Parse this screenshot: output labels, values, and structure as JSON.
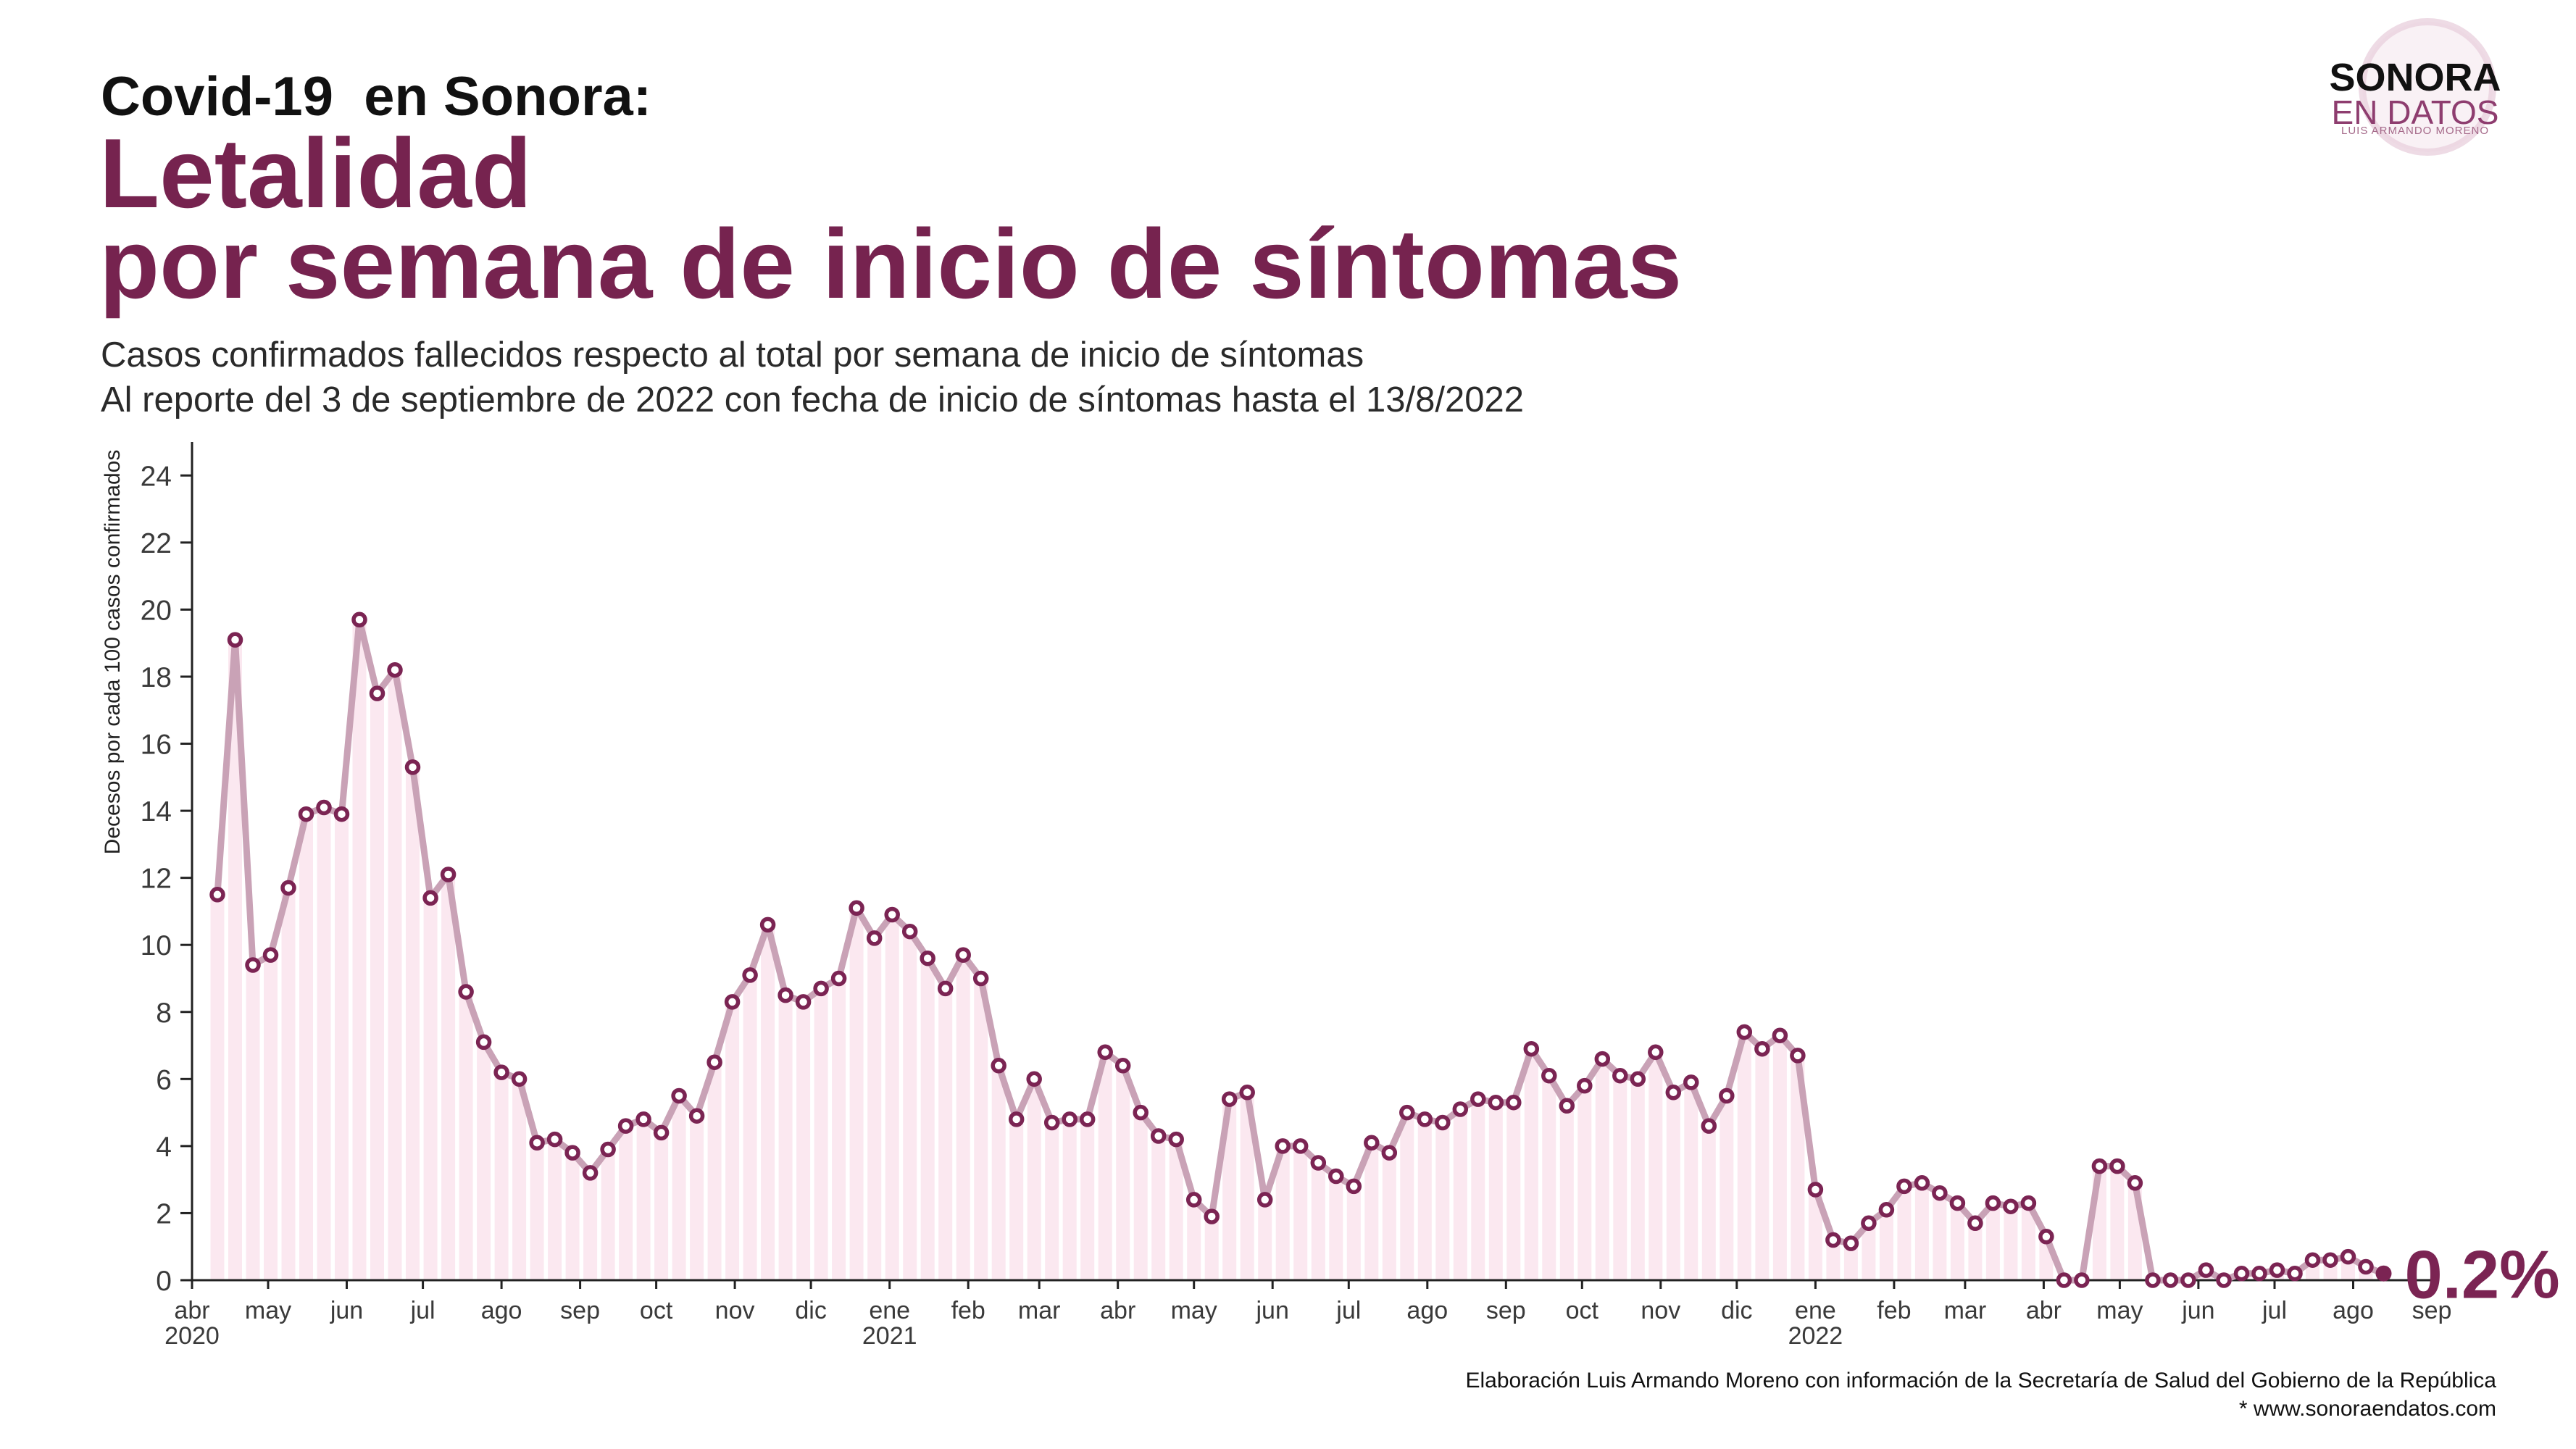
{
  "logo": {
    "name": "SONORA",
    "tagline": "EN DATOS",
    "author": "LUIS ARMANDO MORENO"
  },
  "footer": {
    "credit": "Elaboración Luis Armando Moreno con información de la Secretaría de Salud del Gobierno de la República",
    "url": "* www.sonoraendatos.com"
  },
  "colors": {
    "title": "#76234f",
    "marker": "#7b2453",
    "line": "#c9a2b6",
    "bar": "#fbe8f0",
    "axis": "#222222",
    "logo_accent": "#8e3d6f"
  },
  "chart_data": {
    "type": "line",
    "title": [
      "Covid-19  en Sonora:",
      "Letalidad",
      "por semana de inicio de síntomas"
    ],
    "subtitle": [
      "Casos confirmados fallecidos respecto al total por semana de inicio de síntomas",
      "Al reporte del 3 de septiembre de 2022 con fecha de inicio de síntomas hasta el 13/8/2022"
    ],
    "xlabel": "",
    "ylabel": "Decesos por cada 100 casos confirmados",
    "ylim": [
      0,
      25
    ],
    "yticks": [
      0,
      2,
      4,
      6,
      8,
      10,
      12,
      14,
      16,
      18,
      20,
      22,
      24
    ],
    "xlim": [
      "2020-04-01",
      "2022-09-01"
    ],
    "xticks": [
      {
        "date": "2020-04-01",
        "label": "abr",
        "year": "2020"
      },
      {
        "date": "2020-05-01",
        "label": "may"
      },
      {
        "date": "2020-06-01",
        "label": "jun"
      },
      {
        "date": "2020-07-01",
        "label": "jul"
      },
      {
        "date": "2020-08-01",
        "label": "ago"
      },
      {
        "date": "2020-09-01",
        "label": "sep"
      },
      {
        "date": "2020-10-01",
        "label": "oct"
      },
      {
        "date": "2020-11-01",
        "label": "nov"
      },
      {
        "date": "2020-12-01",
        "label": "dic"
      },
      {
        "date": "2021-01-01",
        "label": "ene",
        "year": "2021"
      },
      {
        "date": "2021-02-01",
        "label": "feb"
      },
      {
        "date": "2021-03-01",
        "label": "mar"
      },
      {
        "date": "2021-04-01",
        "label": "abr"
      },
      {
        "date": "2021-05-01",
        "label": "may"
      },
      {
        "date": "2021-06-01",
        "label": "jun"
      },
      {
        "date": "2021-07-01",
        "label": "jul"
      },
      {
        "date": "2021-08-01",
        "label": "ago"
      },
      {
        "date": "2021-09-01",
        "label": "sep"
      },
      {
        "date": "2021-10-01",
        "label": "oct"
      },
      {
        "date": "2021-11-01",
        "label": "nov"
      },
      {
        "date": "2021-12-01",
        "label": "dic"
      },
      {
        "date": "2022-01-01",
        "label": "ene",
        "year": "2022"
      },
      {
        "date": "2022-02-01",
        "label": "feb"
      },
      {
        "date": "2022-03-01",
        "label": "mar"
      },
      {
        "date": "2022-04-01",
        "label": "abr"
      },
      {
        "date": "2022-05-01",
        "label": "may"
      },
      {
        "date": "2022-06-01",
        "label": "jun"
      },
      {
        "date": "2022-07-01",
        "label": "jul"
      },
      {
        "date": "2022-08-01",
        "label": "ago"
      },
      {
        "date": "2022-09-01",
        "label": "sep"
      }
    ],
    "grid": false,
    "x": [
      "2020-04-11",
      "2020-04-18",
      "2020-04-25",
      "2020-05-02",
      "2020-05-09",
      "2020-05-16",
      "2020-05-23",
      "2020-05-30",
      "2020-06-06",
      "2020-06-13",
      "2020-06-20",
      "2020-06-27",
      "2020-07-04",
      "2020-07-11",
      "2020-07-18",
      "2020-07-25",
      "2020-08-01",
      "2020-08-08",
      "2020-08-15",
      "2020-08-22",
      "2020-08-29",
      "2020-09-05",
      "2020-09-12",
      "2020-09-19",
      "2020-09-26",
      "2020-10-03",
      "2020-10-10",
      "2020-10-17",
      "2020-10-24",
      "2020-10-31",
      "2020-11-07",
      "2020-11-14",
      "2020-11-21",
      "2020-11-28",
      "2020-12-05",
      "2020-12-12",
      "2020-12-19",
      "2020-12-26",
      "2021-01-02",
      "2021-01-09",
      "2021-01-16",
      "2021-01-23",
      "2021-01-30",
      "2021-02-06",
      "2021-02-13",
      "2021-02-20",
      "2021-02-27",
      "2021-03-06",
      "2021-03-13",
      "2021-03-20",
      "2021-03-27",
      "2021-04-03",
      "2021-04-10",
      "2021-04-17",
      "2021-04-24",
      "2021-05-01",
      "2021-05-08",
      "2021-05-15",
      "2021-05-22",
      "2021-05-29",
      "2021-06-05",
      "2021-06-12",
      "2021-06-19",
      "2021-06-26",
      "2021-07-03",
      "2021-07-10",
      "2021-07-17",
      "2021-07-24",
      "2021-07-31",
      "2021-08-07",
      "2021-08-14",
      "2021-08-21",
      "2021-08-28",
      "2021-09-04",
      "2021-09-11",
      "2021-09-18",
      "2021-09-25",
      "2021-10-02",
      "2021-10-09",
      "2021-10-16",
      "2021-10-23",
      "2021-10-30",
      "2021-11-06",
      "2021-11-13",
      "2021-11-20",
      "2021-11-27",
      "2021-12-04",
      "2021-12-11",
      "2021-12-18",
      "2021-12-25",
      "2022-01-01",
      "2022-01-08",
      "2022-01-15",
      "2022-01-22",
      "2022-01-29",
      "2022-02-05",
      "2022-02-12",
      "2022-02-19",
      "2022-02-26",
      "2022-03-05",
      "2022-03-12",
      "2022-03-19",
      "2022-03-26",
      "2022-04-02",
      "2022-04-09",
      "2022-04-16",
      "2022-04-23",
      "2022-04-30",
      "2022-05-07",
      "2022-05-14",
      "2022-05-21",
      "2022-05-28",
      "2022-06-04",
      "2022-06-11",
      "2022-06-18",
      "2022-06-25",
      "2022-07-02",
      "2022-07-09",
      "2022-07-16",
      "2022-07-23",
      "2022-07-30",
      "2022-08-06",
      "2022-08-13"
    ],
    "series": [
      {
        "values": [
          11.5,
          19.1,
          9.4,
          9.7,
          11.7,
          13.9,
          14.1,
          13.9,
          19.7,
          17.5,
          18.2,
          15.3,
          11.4,
          12.1,
          8.6,
          7.1,
          6.2,
          6.0,
          4.1,
          4.2,
          3.8,
          3.2,
          3.9,
          4.6,
          4.8,
          4.4,
          5.5,
          4.9,
          6.5,
          8.3,
          9.1,
          10.6,
          8.5,
          8.3,
          8.7,
          9.0,
          11.1,
          10.2,
          10.9,
          10.4,
          9.6,
          8.7,
          9.7,
          9.0,
          6.4,
          4.8,
          6.0,
          4.7,
          4.8,
          4.8,
          6.8,
          6.4,
          5.0,
          4.3,
          4.2,
          2.4,
          1.9,
          5.4,
          5.6,
          2.4,
          4.0,
          4.0,
          3.5,
          3.1,
          2.8,
          4.1,
          3.8,
          5.0,
          4.8,
          4.7,
          5.1,
          5.4,
          5.3,
          5.3,
          6.9,
          6.1,
          5.2,
          5.8,
          6.6,
          6.1,
          6.0,
          6.8,
          5.6,
          5.9,
          4.6,
          5.5,
          7.4,
          6.9,
          7.3,
          6.7,
          2.7,
          1.2,
          1.1,
          1.7,
          2.1,
          2.8,
          2.9,
          2.6,
          2.3,
          1.7,
          2.3,
          2.2,
          2.3,
          1.3,
          0.0,
          0.0,
          3.4,
          3.4,
          2.9,
          0.0,
          0.0,
          0.0,
          0.3,
          0.0,
          0.2,
          0.2,
          0.3,
          0.2,
          0.6,
          0.6,
          0.7,
          0.4,
          0.2
        ]
      }
    ],
    "last_label": "0.2%"
  }
}
